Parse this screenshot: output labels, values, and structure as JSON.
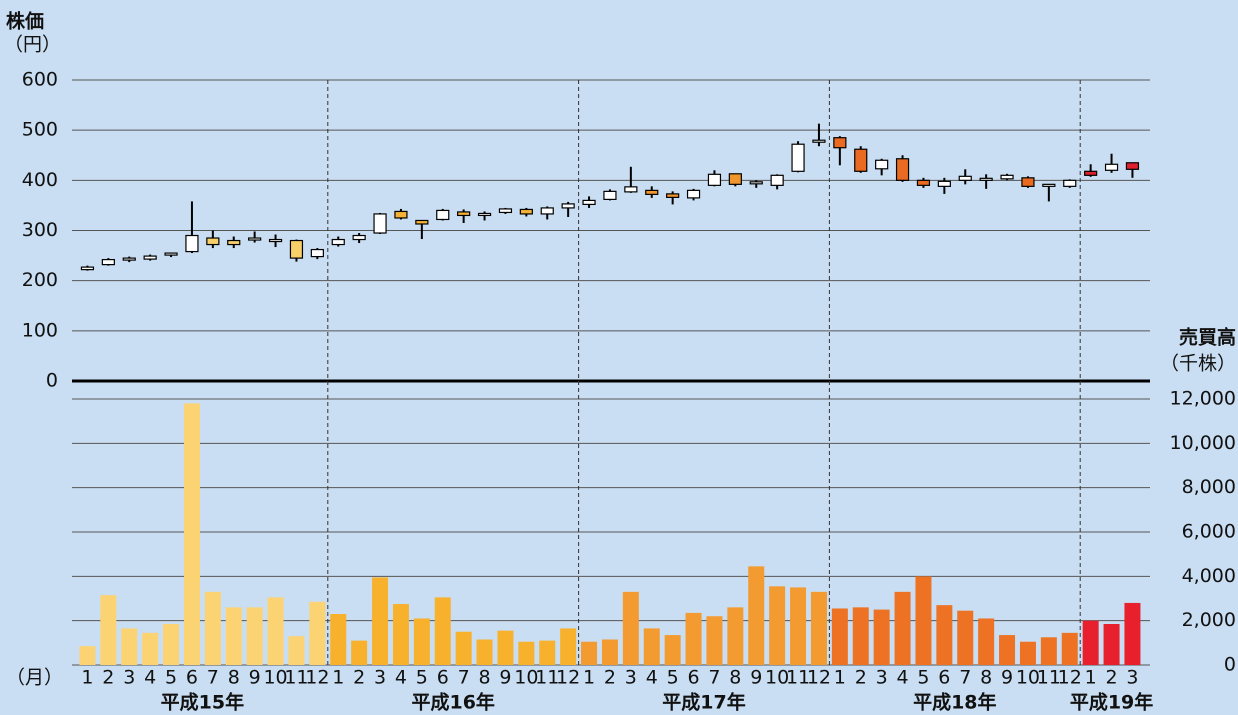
{
  "chart_data": {
    "type": "candlestick",
    "y_label": "株価",
    "y_unit": "（円）",
    "y2_label": "売買高",
    "y2_unit": "（千株）",
    "x_unit": "（月）",
    "ylim": [
      0,
      600
    ],
    "yticks": [
      0,
      100,
      200,
      300,
      400,
      500,
      600
    ],
    "y2lim": [
      0,
      12000
    ],
    "y2ticks": [
      0,
      {
        "value": 2000,
        "label": "2,000"
      },
      {
        "value": 4000,
        "label": "4,000"
      },
      {
        "value": 6000,
        "label": "6,000"
      },
      {
        "value": 8000,
        "label": "8,000"
      },
      {
        "value": 10000,
        "label": "10,000"
      },
      {
        "value": 12000,
        "label": "12,000"
      }
    ],
    "up_color": "#ffffff",
    "groups": [
      {
        "label": "平成15年",
        "color": "#f9cf6a",
        "volume_color": "#fcd372",
        "months": [
          "1",
          "2",
          "3",
          "4",
          "5",
          "6",
          "7",
          "8",
          "9",
          "10",
          "11",
          "12"
        ],
        "open": [
          222,
          232,
          243,
          243,
          250,
          258,
          285,
          280,
          283,
          280,
          280,
          248
        ],
        "high": [
          230,
          245,
          248,
          252,
          256,
          358,
          300,
          288,
          298,
          292,
          282,
          265
        ],
        "low": [
          220,
          230,
          237,
          240,
          247,
          255,
          265,
          265,
          276,
          267,
          238,
          243
        ],
        "close": [
          227,
          242,
          243,
          249,
          253,
          290,
          272,
          272,
          283,
          280,
          245,
          262
        ],
        "volume": [
          850,
          3150,
          1650,
          1450,
          1850,
          11800,
          3300,
          2600,
          2600,
          3050,
          1300,
          2850
        ]
      },
      {
        "label": "平成16年",
        "color": "#f5b236",
        "volume_color": "#f8b12c",
        "months": [
          "1",
          "2",
          "3",
          "4",
          "5",
          "6",
          "7",
          "8",
          "9",
          "10",
          "11",
          "12"
        ],
        "open": [
          272,
          282,
          295,
          338,
          320,
          322,
          337,
          332,
          336,
          342,
          333,
          345
        ],
        "high": [
          288,
          295,
          335,
          343,
          320,
          343,
          342,
          338,
          345,
          345,
          348,
          357
        ],
        "low": [
          268,
          275,
          293,
          322,
          283,
          320,
          315,
          320,
          333,
          328,
          322,
          327
        ],
        "close": [
          282,
          290,
          333,
          325,
          313,
          340,
          330,
          332,
          343,
          333,
          345,
          353
        ],
        "volume": [
          2300,
          1100,
          3950,
          2750,
          2100,
          3050,
          1500,
          1150,
          1550,
          1050,
          1100,
          1650
        ]
      },
      {
        "label": "平成17年",
        "color": "#f0962c",
        "volume_color": "#f39a30",
        "months": [
          "1",
          "2",
          "3",
          "4",
          "5",
          "6",
          "7",
          "8",
          "9",
          "10",
          "11",
          "12"
        ],
        "open": [
          352,
          362,
          377,
          380,
          373,
          365,
          390,
          413,
          395,
          390,
          418,
          478
        ],
        "high": [
          368,
          382,
          427,
          388,
          378,
          383,
          420,
          413,
          400,
          412,
          478,
          513
        ],
        "low": [
          345,
          360,
          375,
          365,
          352,
          360,
          388,
          388,
          385,
          382,
          416,
          468
        ],
        "close": [
          360,
          378,
          387,
          372,
          366,
          380,
          412,
          392,
          395,
          410,
          472,
          478
        ],
        "volume": [
          1050,
          1150,
          3300,
          1650,
          1350,
          2350,
          2200,
          2600,
          4450,
          3550,
          3500,
          3300
        ]
      },
      {
        "label": "平成18年",
        "color": "#ea6a22",
        "volume_color": "#ee7223",
        "months": [
          "1",
          "2",
          "3",
          "4",
          "5",
          "6",
          "7",
          "8",
          "9",
          "10",
          "11",
          "12"
        ],
        "open": [
          485,
          462,
          423,
          443,
          400,
          388,
          400,
          402,
          403,
          405,
          390,
          388
        ],
        "high": [
          488,
          468,
          443,
          450,
          405,
          405,
          422,
          412,
          413,
          408,
          392,
          402
        ],
        "low": [
          430,
          415,
          410,
          397,
          385,
          373,
          392,
          383,
          400,
          385,
          358,
          385
        ],
        "close": [
          465,
          418,
          440,
          400,
          390,
          398,
          408,
          402,
          410,
          388,
          390,
          400
        ],
        "volume": [
          2550,
          2600,
          2500,
          3300,
          4000,
          2700,
          2450,
          2100,
          1350,
          1050,
          1250,
          1450
        ]
      },
      {
        "label": "平成19年",
        "color": "#e0202e",
        "volume_color": "#e8202e",
        "months": [
          "1",
          "2",
          "3"
        ],
        "open": [
          418,
          420,
          435
        ],
        "high": [
          432,
          453,
          435
        ],
        "low": [
          407,
          415,
          405
        ],
        "close": [
          410,
          432,
          422
        ],
        "volume": [
          2000,
          1850,
          2800
        ]
      }
    ]
  }
}
